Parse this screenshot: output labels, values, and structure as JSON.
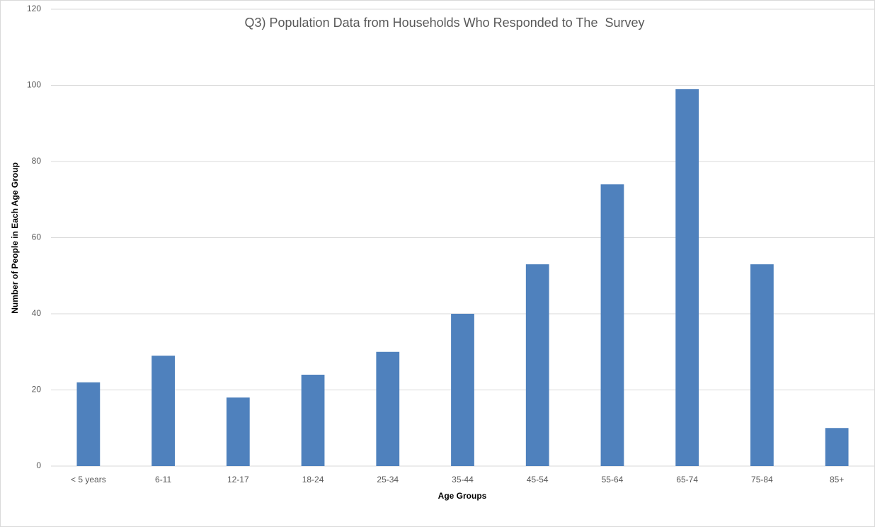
{
  "chart_data": {
    "type": "bar",
    "title": "Q3) Population Data from Households Who Responded to The  Survey",
    "x_label": "Age Groups",
    "y_label": "Number of People in Each Age Group",
    "categories": [
      "< 5 years",
      "6-11",
      "12-17",
      "18-24",
      "25-34",
      "35-44",
      "45-54",
      "55-64",
      "65-74",
      "75-84",
      "85+"
    ],
    "values": [
      22,
      29,
      18,
      24,
      30,
      40,
      53,
      74,
      99,
      53,
      10
    ],
    "color": "#4f81bd",
    "ylim": [
      0,
      120
    ],
    "yticks": [
      0,
      20,
      40,
      60,
      80,
      100,
      120
    ],
    "grid": true
  }
}
